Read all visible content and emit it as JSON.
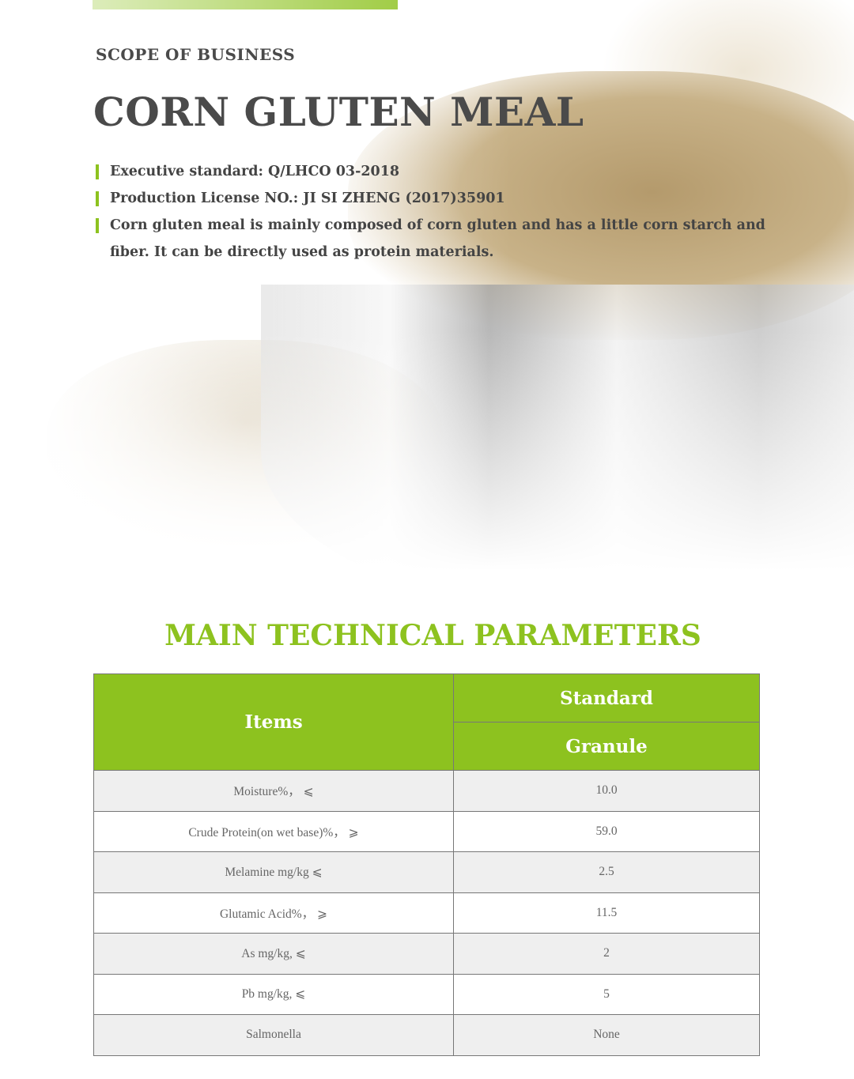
{
  "header": {
    "section_label": "SCOPE OF BUSINESS",
    "title": "CORN GLUTEN MEAL",
    "info": [
      "Executive standard: Q/LHCO 03-2018",
      "Production License NO.: JI SI ZHENG (2017)35901",
      "Corn gluten meal is mainly composed of corn gluten and has a little corn starch and fiber. It can be directly used as protein materials."
    ]
  },
  "colors": {
    "accent": "#8dc21f",
    "text": "#4a4a4a"
  },
  "params": {
    "title": "MAIN TECHNICAL PARAMETERS",
    "col_items": "Items",
    "col_standard": "Standard",
    "col_granule": "Granule",
    "rows": [
      {
        "item": "Moisture%， ⩽",
        "value": "10.0"
      },
      {
        "item": "Crude Protein(on wet base)%， ⩾",
        "value": "59.0"
      },
      {
        "item": "Melamine mg/kg ⩽",
        "value": "2.5"
      },
      {
        "item": "Glutamic Acid%， ⩾",
        "value": "11.5"
      },
      {
        "item": "As mg/kg, ⩽",
        "value": "2"
      },
      {
        "item": "Pb mg/kg, ⩽",
        "value": "5"
      },
      {
        "item": "Salmonella",
        "value": "None"
      }
    ]
  }
}
